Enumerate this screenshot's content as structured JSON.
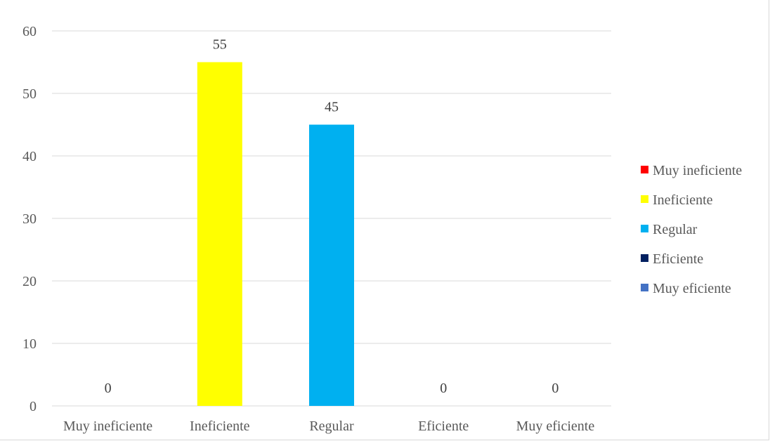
{
  "chart_data": {
    "type": "bar",
    "categories": [
      "Muy ineficiente",
      "Ineficiente",
      "Regular",
      "Eficiente",
      "Muy eficiente"
    ],
    "values": [
      0,
      55,
      45,
      0,
      0
    ],
    "data_labels": [
      "0",
      "55",
      "45",
      "0",
      "0"
    ],
    "colors": [
      "#ff0000",
      "#ffff00",
      "#00b0f0",
      "#002060",
      "#4472c4"
    ],
    "title": "",
    "xlabel": "",
    "ylabel": "",
    "ylim": [
      0,
      60
    ],
    "yticks": [
      0,
      10,
      20,
      30,
      40,
      50,
      60
    ],
    "grid": true,
    "legend": {
      "placement": "right",
      "entries": [
        "Muy ineficiente",
        "Ineficiente",
        "Regular",
        "Eficiente",
        "Muy eficiente"
      ]
    }
  }
}
